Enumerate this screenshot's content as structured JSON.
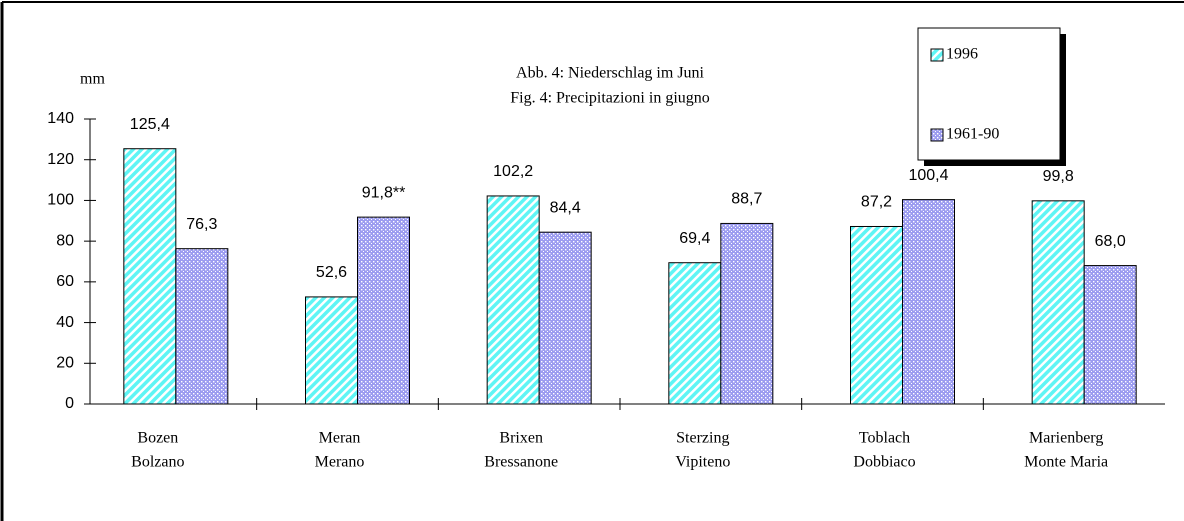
{
  "chart_data": {
    "type": "bar",
    "title": [
      "Abb. 4: Niederschlag im Juni",
      "Fig. 4: Precipitazioni in giugno"
    ],
    "y_label": "mm",
    "categories": [
      [
        "Bozen",
        "Bolzano"
      ],
      [
        "Meran",
        "Merano"
      ],
      [
        "Brixen",
        "Bressanone"
      ],
      [
        "Sterzing",
        "Vipiteno"
      ],
      [
        "Toblach",
        "Dobbiaco"
      ],
      [
        "Marienberg",
        "Monte Maria"
      ]
    ],
    "series": [
      {
        "name": "1996",
        "color": "#5ff5f5",
        "values": [
          125.4,
          52.6,
          102.2,
          69.4,
          87.2,
          99.8
        ],
        "value_labels": [
          "125,4",
          "52,6",
          "102,2",
          "69,4",
          "87,2",
          "99,8"
        ]
      },
      {
        "name": "1961-90",
        "color": "#9c9cf0",
        "values": [
          76.3,
          91.8,
          84.4,
          88.7,
          100.4,
          68.0
        ],
        "value_labels": [
          "76,3",
          "91,8**",
          "84,4",
          "88,7",
          "100,4",
          "68,0"
        ]
      }
    ],
    "ylim": [
      0,
      140
    ],
    "yticks": [
      0,
      20,
      40,
      60,
      80,
      100,
      120,
      140
    ],
    "grid": false
  }
}
